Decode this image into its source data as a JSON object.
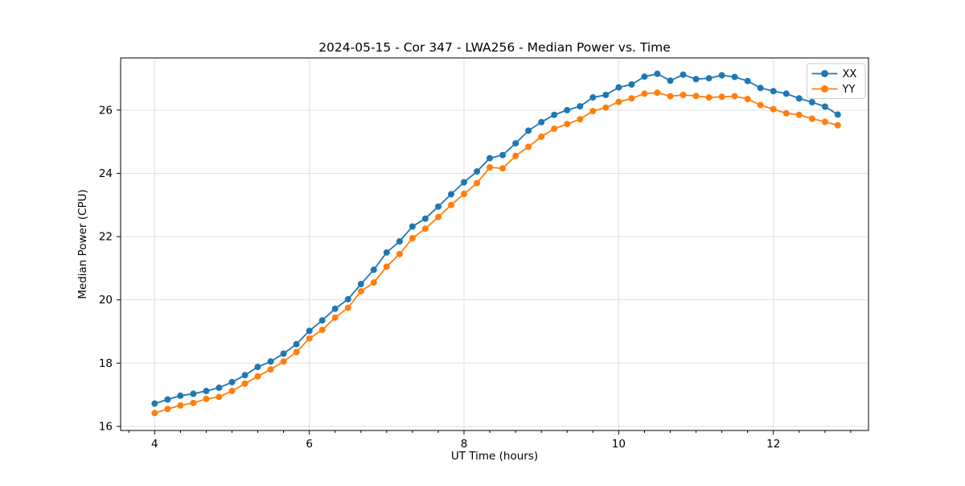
{
  "chart_data": {
    "type": "line",
    "title": "2024-05-15 - Cor 347 - LWA256 - Median Power vs. Time",
    "xlabel": "UT Time (hours)",
    "ylabel": "Median Power (CPU)",
    "xlim": [
      3.56,
      13.23
    ],
    "ylim": [
      15.87,
      27.65
    ],
    "x_major_ticks": [
      4,
      6,
      8,
      10,
      12
    ],
    "x_minor_tick_step": 0.3333,
    "y_major_ticks": [
      16,
      18,
      20,
      22,
      24,
      26
    ],
    "grid": true,
    "legend_position": "upper right",
    "marker": "circle",
    "x": [
      4.0,
      4.167,
      4.333,
      4.5,
      4.667,
      4.833,
      5.0,
      5.167,
      5.333,
      5.5,
      5.667,
      5.833,
      6.0,
      6.167,
      6.333,
      6.5,
      6.667,
      6.833,
      7.0,
      7.167,
      7.333,
      7.5,
      7.667,
      7.833,
      8.0,
      8.167,
      8.333,
      8.5,
      8.667,
      8.833,
      9.0,
      9.167,
      9.333,
      9.5,
      9.667,
      9.833,
      10.0,
      10.167,
      10.333,
      10.5,
      10.667,
      10.833,
      11.0,
      11.167,
      11.333,
      11.5,
      11.667,
      11.833,
      12.0,
      12.167,
      12.333,
      12.5,
      12.667,
      12.833
    ],
    "series": [
      {
        "name": "XX",
        "color": "#1f77b4",
        "values": [
          16.72,
          16.85,
          16.97,
          17.03,
          17.12,
          17.22,
          17.4,
          17.62,
          17.88,
          18.05,
          18.3,
          18.6,
          19.02,
          19.35,
          19.72,
          20.02,
          20.5,
          20.95,
          21.5,
          21.85,
          22.32,
          22.57,
          22.95,
          23.34,
          23.72,
          24.06,
          24.48,
          24.58,
          24.95,
          25.35,
          25.62,
          25.85,
          26.0,
          26.12,
          26.4,
          26.48,
          26.72,
          26.81,
          27.06,
          27.15,
          26.93,
          27.12,
          26.98,
          27.01,
          27.1,
          27.05,
          26.92,
          26.7,
          26.6,
          26.52,
          26.37,
          26.25,
          26.11,
          25.86
        ]
      },
      {
        "name": "YY",
        "color": "#ff7f0e",
        "values": [
          16.42,
          16.55,
          16.66,
          16.74,
          16.87,
          16.93,
          17.12,
          17.35,
          17.58,
          17.8,
          18.05,
          18.35,
          18.78,
          19.05,
          19.44,
          19.75,
          20.27,
          20.55,
          21.05,
          21.45,
          21.95,
          22.25,
          22.62,
          23.0,
          23.35,
          23.69,
          24.19,
          24.16,
          24.55,
          24.84,
          25.16,
          25.41,
          25.56,
          25.71,
          25.97,
          26.08,
          26.26,
          26.37,
          26.52,
          26.55,
          26.44,
          26.48,
          26.45,
          26.4,
          26.42,
          26.44,
          26.35,
          26.16,
          26.03,
          25.9,
          25.85,
          25.73,
          25.63,
          25.52
        ]
      }
    ]
  }
}
